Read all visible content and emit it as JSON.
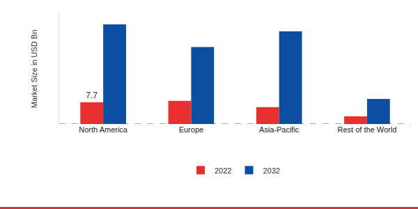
{
  "chart_data": {
    "type": "bar",
    "y_label": "Market Size in USD Bn",
    "categories": [
      "North America",
      "Europe",
      "Asia-Pacific",
      "Rest of the World"
    ],
    "series": [
      {
        "name": "2022",
        "color": "#e8312f",
        "values": [
          7.7,
          8.2,
          6.0,
          2.7
        ],
        "value_labels": [
          "7.7",
          null,
          null,
          null
        ]
      },
      {
        "name": "2032",
        "color": "#0b4ea2",
        "values": [
          35.3,
          27.3,
          32.8,
          8.9
        ]
      }
    ],
    "ylim": [
      0,
      39
    ],
    "tick_labels": "x",
    "grid": false,
    "legend": "bottom"
  }
}
